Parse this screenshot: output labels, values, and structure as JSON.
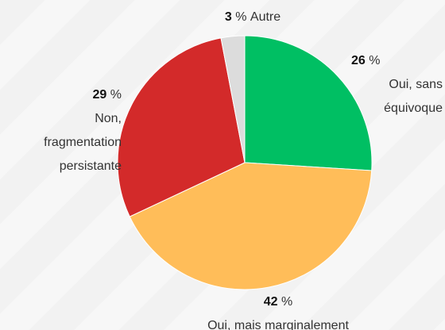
{
  "chart_data": {
    "type": "pie",
    "categories": [
      "Oui, sans équivoque",
      "Oui, mais marginalement",
      "Non, fragmentation persistante",
      "Autre"
    ],
    "values": [
      26,
      42,
      29,
      3
    ],
    "unit": "%",
    "colors": [
      "#00bf63",
      "#ffbd59",
      "#d32a2a",
      "#dcdcdc"
    ]
  }
}
